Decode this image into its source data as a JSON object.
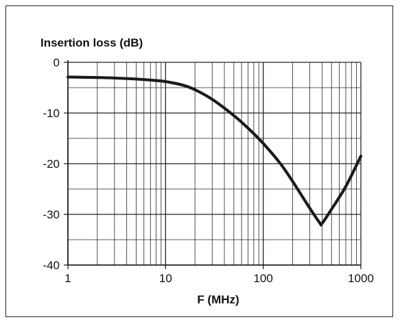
{
  "chart_data": {
    "type": "line",
    "title": "",
    "ylabel": "Insertion loss (dB)",
    "xlabel": "F (MHz)",
    "xscale": "log",
    "xlim": [
      1,
      1000
    ],
    "ylim": [
      -40,
      0
    ],
    "xticks": [
      1,
      10,
      100,
      1000
    ],
    "xtick_labels": [
      "1",
      "10",
      "100",
      "1000"
    ],
    "yticks": [
      0,
      -10,
      -20,
      -30,
      -40
    ],
    "ytick_labels": [
      "0",
      "-10",
      "-20",
      "-30",
      "-40"
    ],
    "grid": true,
    "series": [
      {
        "x": [
          1,
          2,
          3,
          5,
          8,
          10,
          15,
          20,
          30,
          50,
          70,
          100,
          150,
          200,
          300,
          380,
          400,
          500,
          700,
          1000
        ],
        "y": [
          -2.9,
          -3.0,
          -3.1,
          -3.3,
          -3.6,
          -3.8,
          -4.5,
          -5.4,
          -7.3,
          -10.5,
          -13.0,
          -16.0,
          -20.0,
          -23.5,
          -28.8,
          -31.7,
          -31.8,
          -29.0,
          -24.5,
          -18.5
        ]
      }
    ],
    "colors": {
      "line": "#1a1a1a",
      "grid": "#222222"
    }
  }
}
